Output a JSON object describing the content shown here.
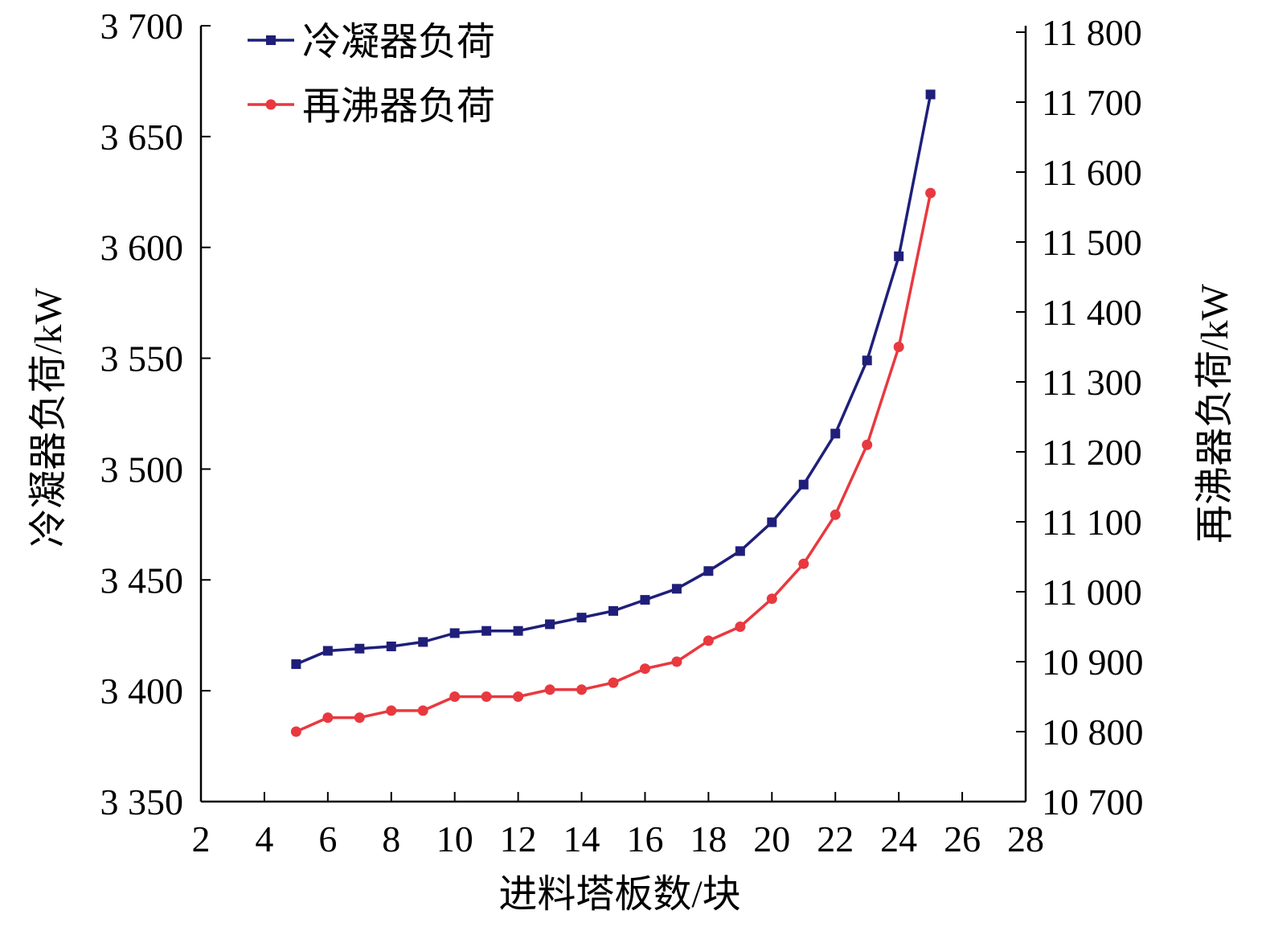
{
  "chart_data": {
    "type": "line",
    "xlabel": "进料塔板数/块",
    "ylabel_left": "冷凝器负荷/kW",
    "ylabel_right": "再沸器负荷/kW",
    "xlim": [
      2,
      28
    ],
    "xticks": [
      2,
      4,
      6,
      8,
      10,
      12,
      14,
      16,
      18,
      20,
      22,
      24,
      26,
      28
    ],
    "xtick_labels": [
      "2",
      "4",
      "6",
      "8",
      "10",
      "12",
      "14",
      "16",
      "18",
      "20",
      "22",
      "24",
      "26",
      "28"
    ],
    "ylim_left": [
      3350,
      3700
    ],
    "yticks_left": [
      3350,
      3400,
      3450,
      3500,
      3550,
      3600,
      3650,
      3700
    ],
    "ytick_labels_left": [
      "3 350",
      "3 400",
      "3 450",
      "3 500",
      "3 550",
      "3 600",
      "3 650",
      "3 700"
    ],
    "ylim_right": [
      10700,
      11800
    ],
    "yticks_right": [
      10700,
      10800,
      10900,
      11000,
      11100,
      11200,
      11300,
      11400,
      11500,
      11600,
      11700,
      11800
    ],
    "ytick_labels_right": [
      "10 700",
      "10 800",
      "10 900",
      "11 000",
      "11 100",
      "11 200",
      "11 300",
      "11 400",
      "11 500",
      "11 600",
      "11 700",
      "11 800"
    ],
    "grid": false,
    "legend_position": "top-left",
    "x": [
      5,
      6,
      7,
      8,
      9,
      10,
      11,
      12,
      13,
      14,
      15,
      16,
      17,
      18,
      19,
      20,
      21,
      22,
      23,
      24,
      25
    ],
    "series": [
      {
        "name": "冷凝器负荷",
        "axis": "left",
        "marker": "square",
        "color": "#1f1f7a",
        "values": [
          3412,
          3418,
          3419,
          3420,
          3422,
          3426,
          3427,
          3427,
          3430,
          3433,
          3436,
          3441,
          3446,
          3454,
          3463,
          3476,
          3493,
          3516,
          3549,
          3596,
          3669
        ]
      },
      {
        "name": "再沸器负荷",
        "axis": "right",
        "marker": "circle",
        "color": "#e8393f",
        "values": [
          10800,
          10820,
          10820,
          10830,
          10830,
          10850,
          10850,
          10850,
          10860,
          10860,
          10870,
          10890,
          10900,
          10930,
          10950,
          10990,
          11040,
          11110,
          11210,
          11350,
          11570
        ]
      }
    ]
  }
}
